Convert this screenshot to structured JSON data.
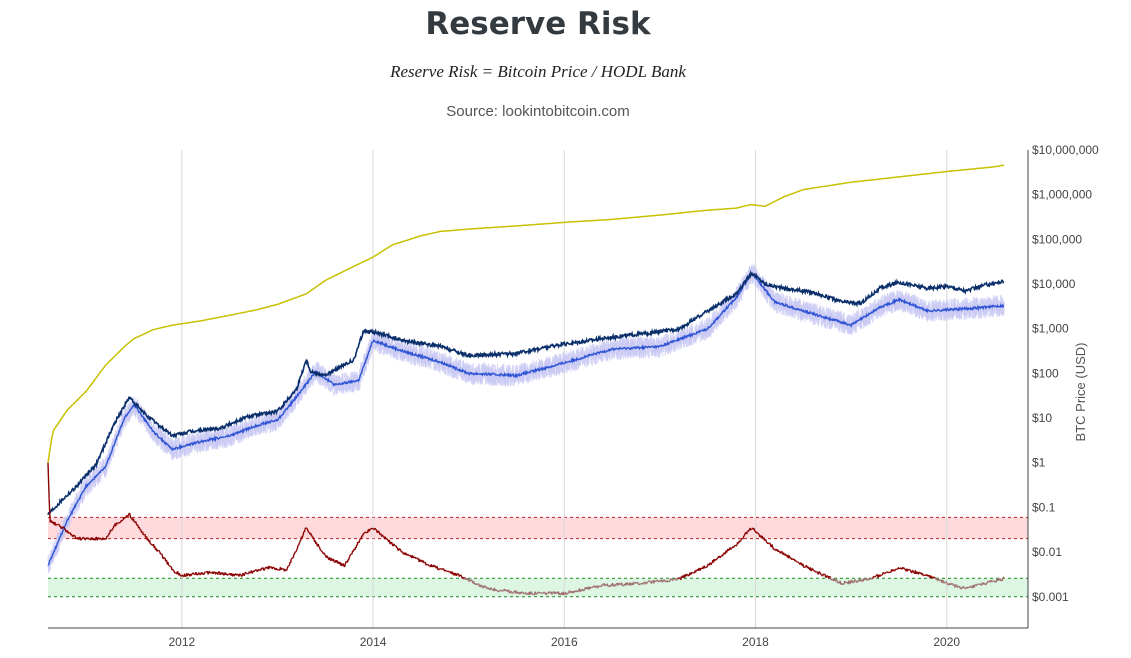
{
  "title": "Reserve Risk",
  "subtitle": "Reserve Risk = Bitcoin Price / HODL Bank",
  "source": "Source: lookintobitcoin.com",
  "colors": {
    "hodl_bank": "#c8c000",
    "price": "#0a2f6b",
    "price_light": "#2f55d4",
    "price_noise": "#c8c8f4",
    "reserve_risk": "#8b0000",
    "reserve_risk_low": "#a07070",
    "red_zone": "#ffd6d9",
    "green_zone": "#d8f5e0",
    "red_line": "#c02020",
    "green_line": "#1a8a1a",
    "grid": "#d8d8d8"
  },
  "chart_data": {
    "type": "line",
    "title": "Reserve Risk",
    "ylabel": "BTC Price (USD)",
    "y_scale": "log",
    "ylim": [
      0.0002,
      10000000
    ],
    "xlim": [
      2010.6,
      2020.85
    ],
    "x_ticks": [
      2012,
      2014,
      2016,
      2018,
      2020
    ],
    "x_tick_labels": [
      "2012",
      "2014",
      "2016",
      "2018",
      "2020"
    ],
    "y_ticks": [
      0.001,
      0.01,
      0.1,
      1,
      10,
      100,
      1000,
      10000,
      100000,
      1000000,
      10000000
    ],
    "y_tick_labels": [
      "$0.001",
      "$0.01",
      "$0.1",
      "$1",
      "$10",
      "$100",
      "$1,000",
      "$10,000",
      "$100,000",
      "$1,000,000",
      "$10,000,000"
    ],
    "grid": "vertical",
    "zones": [
      {
        "name": "red",
        "y": [
          0.02,
          0.06
        ]
      },
      {
        "name": "green",
        "y": [
          0.001,
          0.0026
        ]
      }
    ],
    "series": [
      {
        "key": "hodl_bank",
        "x": [
          2010.6,
          2010.65,
          2010.8,
          2011.0,
          2011.2,
          2011.4,
          2011.5,
          2011.7,
          2011.9,
          2012.2,
          2012.5,
          2012.8,
          2013.0,
          2013.3,
          2013.5,
          2013.8,
          2014.0,
          2014.2,
          2014.5,
          2014.7,
          2015.0,
          2015.5,
          2016.0,
          2016.5,
          2017.0,
          2017.5,
          2017.8,
          2017.95,
          2018.1,
          2018.3,
          2018.5,
          2019.0,
          2019.5,
          2020.0,
          2020.5,
          2020.6
        ],
        "y": [
          1,
          5,
          15,
          40,
          150,
          400,
          600,
          950,
          1200,
          1500,
          2000,
          2700,
          3500,
          6000,
          12000,
          25000,
          40000,
          75000,
          120000,
          150000,
          170000,
          200000,
          240000,
          280000,
          350000,
          450000,
          500000,
          600000,
          550000,
          900000,
          1300000,
          1900000,
          2500000,
          3300000,
          4200000,
          4600000
        ]
      },
      {
        "key": "price",
        "x": [
          2010.6,
          2010.75,
          2010.9,
          2011.1,
          2011.3,
          2011.45,
          2011.6,
          2011.9,
          2012.1,
          2012.4,
          2012.7,
          2013.0,
          2013.2,
          2013.3,
          2013.35,
          2013.5,
          2013.8,
          2013.9,
          2014.0,
          2014.3,
          2014.7,
          2015.0,
          2015.5,
          2015.9,
          2016.5,
          2016.9,
          2017.2,
          2017.5,
          2017.8,
          2017.96,
          2018.1,
          2018.3,
          2018.6,
          2018.9,
          2019.1,
          2019.3,
          2019.5,
          2019.8,
          2020.0,
          2020.2,
          2020.4,
          2020.6
        ],
        "y": [
          0.07,
          0.15,
          0.3,
          0.9,
          8,
          29,
          13,
          4,
          5,
          6,
          11,
          14,
          45,
          200,
          110,
          90,
          200,
          900,
          850,
          550,
          400,
          250,
          280,
          420,
          650,
          800,
          1000,
          2500,
          6000,
          18000,
          10000,
          8000,
          6500,
          4000,
          3700,
          8000,
          11000,
          8000,
          9000,
          7000,
          9500,
          11500
        ]
      },
      {
        "key": "price_mean",
        "x": [
          2010.6,
          2010.8,
          2011.0,
          2011.2,
          2011.4,
          2011.5,
          2011.7,
          2011.9,
          2012.2,
          2012.5,
          2012.8,
          2013.0,
          2013.2,
          2013.4,
          2013.6,
          2013.85,
          2014.0,
          2014.3,
          2014.7,
          2015.0,
          2015.5,
          2015.9,
          2016.5,
          2017.0,
          2017.5,
          2017.8,
          2017.96,
          2018.2,
          2018.5,
          2019.0,
          2019.3,
          2019.5,
          2019.8,
          2020.2,
          2020.6
        ],
        "y": [
          0.005,
          0.05,
          0.3,
          0.8,
          10,
          20,
          5,
          2,
          3,
          4,
          7,
          9,
          30,
          110,
          55,
          70,
          550,
          320,
          180,
          100,
          90,
          150,
          350,
          400,
          1000,
          5000,
          18000,
          4000,
          2500,
          1200,
          3000,
          4500,
          2500,
          2800,
          3300
        ]
      },
      {
        "key": "reserve_risk",
        "x": [
          2010.6,
          2010.62,
          2010.7,
          2010.8,
          2010.9,
          2011.0,
          2011.2,
          2011.3,
          2011.45,
          2011.6,
          2011.8,
          2011.9,
          2012.0,
          2012.3,
          2012.6,
          2012.9,
          2013.1,
          2013.3,
          2013.5,
          2013.7,
          2013.9,
          2014.0,
          2014.3,
          2014.6,
          2014.9,
          2015.2,
          2015.6,
          2016.0,
          2016.4,
          2016.8,
          2017.2,
          2017.5,
          2017.8,
          2017.96,
          2018.2,
          2018.5,
          2018.9,
          2019.2,
          2019.5,
          2019.8,
          2020.0,
          2020.2,
          2020.4,
          2020.6
        ],
        "y": [
          1,
          0.05,
          0.04,
          0.03,
          0.02,
          0.02,
          0.02,
          0.04,
          0.07,
          0.025,
          0.008,
          0.004,
          0.003,
          0.0035,
          0.003,
          0.0045,
          0.004,
          0.035,
          0.008,
          0.005,
          0.025,
          0.035,
          0.01,
          0.005,
          0.003,
          0.0015,
          0.0012,
          0.0012,
          0.0018,
          0.002,
          0.0025,
          0.005,
          0.015,
          0.035,
          0.012,
          0.005,
          0.002,
          0.0025,
          0.0045,
          0.003,
          0.002,
          0.0015,
          0.002,
          0.0025
        ]
      }
    ]
  }
}
